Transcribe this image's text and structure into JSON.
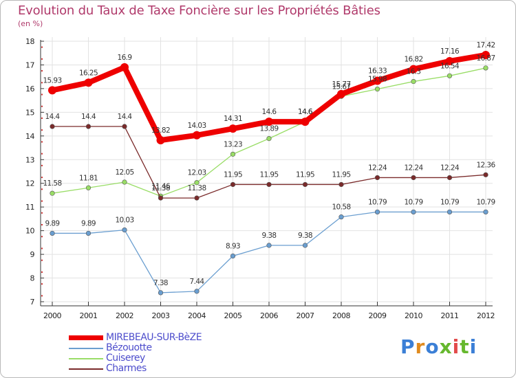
{
  "title": "Evolution du Taux de Taxe Foncière sur les Propriétés Bâties",
  "subtitle": "(en %)",
  "logo_text": "Proxiti",
  "chart_data": {
    "type": "line",
    "title": "Evolution du Taux de Taxe Foncière sur les Propriétés Bâties",
    "ylabel": "(en %)",
    "xlabel": "",
    "x": [
      "2000",
      "2001",
      "2002",
      "2003",
      "2004",
      "2005",
      "2006",
      "2007",
      "2008",
      "2009",
      "2010",
      "2011",
      "2012"
    ],
    "ylim": [
      7,
      18
    ],
    "yticks": [
      "7",
      "8",
      "9",
      "10",
      "11",
      "12",
      "13",
      "14",
      "15",
      "16",
      "17",
      "18"
    ],
    "series": [
      {
        "name": "MIREBEAU-SUR-BèZE",
        "color": "#ee0000",
        "values": [
          15.93,
          16.25,
          16.9,
          13.82,
          14.03,
          14.31,
          14.6,
          14.6,
          15.77,
          16.33,
          16.82,
          17.16,
          17.42
        ],
        "labels": [
          "15.93",
          "16.25",
          "16.9",
          "13.82",
          "14.03",
          "14.31",
          "14.6",
          "14.6",
          "15.77",
          "16.33",
          "16.82",
          "17.16",
          "17.42"
        ]
      },
      {
        "name": "Bézouotte",
        "color": "#6a9ed0",
        "values": [
          9.89,
          9.89,
          10.03,
          7.38,
          7.44,
          8.93,
          9.38,
          9.38,
          10.58,
          10.79,
          10.79,
          10.79,
          10.79
        ],
        "labels": [
          "9.89",
          "9.89",
          "10.03",
          "7.38",
          "7.44",
          "8.93",
          "9.38",
          "9.38",
          "10.58",
          "10.79",
          "10.79",
          "10.79",
          "10.79"
        ]
      },
      {
        "name": "Cuiserey",
        "color": "#99dd66",
        "values": [
          11.58,
          11.81,
          12.05,
          11.46,
          12.03,
          13.23,
          13.89,
          14.6,
          15.67,
          15.98,
          16.3,
          16.54,
          16.87
        ],
        "labels": [
          "11.58",
          "11.81",
          "12.05",
          "11.46",
          "12.03",
          "13.23",
          "13.89",
          "14.6",
          "15.67",
          "15.98",
          "16.3",
          "16.54",
          "16.87"
        ]
      },
      {
        "name": "Charmes",
        "color": "#7a2a2a",
        "values": [
          14.4,
          14.4,
          14.4,
          11.38,
          11.38,
          11.95,
          11.95,
          11.95,
          11.95,
          12.24,
          12.24,
          12.24,
          12.36
        ],
        "labels": [
          "14.4",
          "14.4",
          "14.4",
          "11.38",
          "11.38",
          "11.95",
          "11.95",
          "11.95",
          "11.95",
          "12.24",
          "12.24",
          "12.24",
          "12.36"
        ]
      }
    ]
  },
  "legend": [
    {
      "label": "MIREBEAU-SUR-BèZE",
      "color": "#ee0000"
    },
    {
      "label": "Bézouotte",
      "color": "#6a9ed0"
    },
    {
      "label": "Cuiserey",
      "color": "#99dd66"
    },
    {
      "label": "Charmes",
      "color": "#7a2a2a"
    }
  ],
  "label_color": "#4d4dcc"
}
